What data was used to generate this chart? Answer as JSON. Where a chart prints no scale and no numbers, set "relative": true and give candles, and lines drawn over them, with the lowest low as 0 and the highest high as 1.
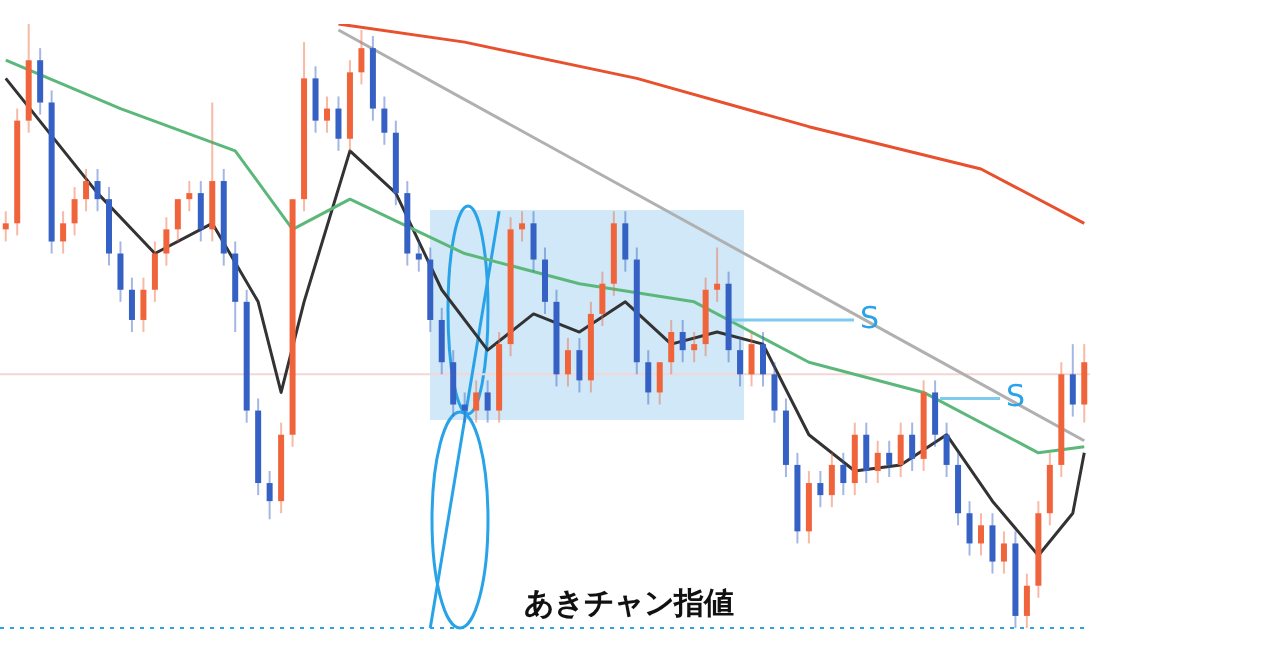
{
  "chart_data": {
    "type": "candlestick",
    "relative": true,
    "legend": false,
    "grid": false,
    "marker": "none",
    "categories": [
      null,
      null,
      null,
      null,
      null,
      null,
      null,
      null,
      null,
      null,
      null,
      null,
      null,
      null,
      null,
      null,
      null,
      null,
      null,
      null,
      null,
      null,
      null,
      null,
      null,
      null,
      null,
      null,
      null,
      null,
      null,
      null,
      null,
      null,
      null,
      null,
      null,
      null,
      null,
      null,
      null,
      null,
      null,
      null,
      null,
      null,
      null,
      null,
      null,
      null,
      null,
      null,
      null,
      null,
      null,
      null,
      null,
      null,
      null,
      null,
      null,
      null,
      null,
      null,
      null,
      null,
      null,
      null,
      null,
      null,
      null,
      null,
      null,
      null,
      null,
      null,
      null,
      null,
      null,
      null,
      null,
      null,
      null,
      null,
      null,
      null,
      null,
      null,
      null,
      null,
      null,
      null,
      null,
      null,
      null
    ],
    "ohlc": [
      [
        0.66,
        0.69,
        0.64,
        0.67
      ],
      [
        0.67,
        0.86,
        0.65,
        0.84
      ],
      [
        0.84,
        1.0,
        0.82,
        0.94
      ],
      [
        0.94,
        0.96,
        0.85,
        0.87
      ],
      [
        0.87,
        0.89,
        0.62,
        0.64
      ],
      [
        0.64,
        0.69,
        0.62,
        0.67
      ],
      [
        0.67,
        0.73,
        0.65,
        0.71
      ],
      [
        0.71,
        0.76,
        0.69,
        0.74
      ],
      [
        0.74,
        0.76,
        0.69,
        0.71
      ],
      [
        0.71,
        0.73,
        0.6,
        0.62
      ],
      [
        0.62,
        0.64,
        0.54,
        0.56
      ],
      [
        0.56,
        0.58,
        0.49,
        0.51
      ],
      [
        0.51,
        0.58,
        0.49,
        0.56
      ],
      [
        0.56,
        0.64,
        0.54,
        0.62
      ],
      [
        0.62,
        0.68,
        0.6,
        0.66
      ],
      [
        0.66,
        0.71,
        0.64,
        0.71
      ],
      [
        0.71,
        0.74,
        0.69,
        0.72
      ],
      [
        0.72,
        0.74,
        0.64,
        0.66
      ],
      [
        0.66,
        0.87,
        0.64,
        0.74
      ],
      [
        0.74,
        0.76,
        0.6,
        0.62
      ],
      [
        0.62,
        0.64,
        0.49,
        0.54
      ],
      [
        0.54,
        0.56,
        0.34,
        0.36
      ],
      [
        0.36,
        0.38,
        0.22,
        0.24
      ],
      [
        0.24,
        0.26,
        0.18,
        0.21
      ],
      [
        0.21,
        0.34,
        0.19,
        0.32
      ],
      [
        0.32,
        0.71,
        0.3,
        0.71
      ],
      [
        0.71,
        0.97,
        0.69,
        0.91
      ],
      [
        0.91,
        0.93,
        0.82,
        0.84
      ],
      [
        0.84,
        0.88,
        0.82,
        0.86
      ],
      [
        0.86,
        0.88,
        0.79,
        0.81
      ],
      [
        0.81,
        0.94,
        0.79,
        0.92
      ],
      [
        0.92,
        0.99,
        0.9,
        0.96
      ],
      [
        0.96,
        0.98,
        0.84,
        0.86
      ],
      [
        0.86,
        0.88,
        0.8,
        0.82
      ],
      [
        0.82,
        0.84,
        0.7,
        0.72
      ],
      [
        0.72,
        0.74,
        0.6,
        0.62
      ],
      [
        0.62,
        0.64,
        0.59,
        0.61
      ],
      [
        0.61,
        0.63,
        0.49,
        0.51
      ],
      [
        0.51,
        0.53,
        0.42,
        0.44
      ],
      [
        0.44,
        0.46,
        0.35,
        0.37
      ],
      [
        0.37,
        0.39,
        0.34,
        0.36
      ],
      [
        0.36,
        0.41,
        0.34,
        0.39
      ],
      [
        0.39,
        0.41,
        0.34,
        0.36
      ],
      [
        0.36,
        0.49,
        0.34,
        0.47
      ],
      [
        0.47,
        0.68,
        0.45,
        0.66
      ],
      [
        0.66,
        0.69,
        0.64,
        0.67
      ],
      [
        0.67,
        0.69,
        0.59,
        0.61
      ],
      [
        0.61,
        0.63,
        0.52,
        0.54
      ],
      [
        0.54,
        0.56,
        0.4,
        0.42
      ],
      [
        0.42,
        0.48,
        0.4,
        0.46
      ],
      [
        0.46,
        0.48,
        0.39,
        0.41
      ],
      [
        0.41,
        0.54,
        0.39,
        0.52
      ],
      [
        0.52,
        0.59,
        0.5,
        0.57
      ],
      [
        0.57,
        0.69,
        0.55,
        0.67
      ],
      [
        0.67,
        0.69,
        0.59,
        0.61
      ],
      [
        0.61,
        0.63,
        0.42,
        0.44
      ],
      [
        0.44,
        0.46,
        0.37,
        0.39
      ],
      [
        0.39,
        0.44,
        0.37,
        0.44
      ],
      [
        0.44,
        0.51,
        0.42,
        0.49
      ],
      [
        0.49,
        0.51,
        0.44,
        0.46
      ],
      [
        0.46,
        0.49,
        0.44,
        0.47
      ],
      [
        0.47,
        0.58,
        0.45,
        0.56
      ],
      [
        0.56,
        0.63,
        0.54,
        0.57
      ],
      [
        0.57,
        0.59,
        0.44,
        0.46
      ],
      [
        0.46,
        0.48,
        0.4,
        0.42
      ],
      [
        0.42,
        0.49,
        0.4,
        0.47
      ],
      [
        0.47,
        0.49,
        0.4,
        0.42
      ],
      [
        0.42,
        0.44,
        0.34,
        0.36
      ],
      [
        0.36,
        0.38,
        0.25,
        0.27
      ],
      [
        0.27,
        0.29,
        0.14,
        0.16
      ],
      [
        0.16,
        0.26,
        0.14,
        0.24
      ],
      [
        0.24,
        0.26,
        0.2,
        0.22
      ],
      [
        0.22,
        0.29,
        0.2,
        0.27
      ],
      [
        0.27,
        0.29,
        0.22,
        0.24
      ],
      [
        0.24,
        0.34,
        0.22,
        0.32
      ],
      [
        0.32,
        0.34,
        0.24,
        0.26
      ],
      [
        0.26,
        0.31,
        0.24,
        0.29
      ],
      [
        0.29,
        0.31,
        0.25,
        0.27
      ],
      [
        0.27,
        0.34,
        0.25,
        0.32
      ],
      [
        0.32,
        0.34,
        0.26,
        0.28
      ],
      [
        0.28,
        0.41,
        0.26,
        0.39
      ],
      [
        0.39,
        0.41,
        0.3,
        0.32
      ],
      [
        0.32,
        0.34,
        0.25,
        0.27
      ],
      [
        0.27,
        0.29,
        0.17,
        0.19
      ],
      [
        0.19,
        0.21,
        0.12,
        0.14
      ],
      [
        0.14,
        0.19,
        0.12,
        0.17
      ],
      [
        0.17,
        0.19,
        0.09,
        0.11
      ],
      [
        0.11,
        0.16,
        0.09,
        0.14
      ],
      [
        0.14,
        0.16,
        0.0,
        0.02
      ],
      [
        0.02,
        0.09,
        0.0,
        0.07
      ],
      [
        0.07,
        0.21,
        0.05,
        0.19
      ],
      [
        0.19,
        0.29,
        0.17,
        0.27
      ],
      [
        0.27,
        0.44,
        0.25,
        0.42
      ],
      [
        0.42,
        0.47,
        0.35,
        0.37
      ],
      [
        0.37,
        0.47,
        0.34,
        0.44
      ]
    ],
    "colors": [
      "#f0643c",
      "#f0643c",
      "#f0643c",
      "#3560c4",
      "#3560c4",
      "#f0643c",
      "#f0643c",
      "#f0643c",
      "#3560c4",
      "#3560c4",
      "#3560c4",
      "#3560c4",
      "#f0643c",
      "#f0643c",
      "#f0643c",
      "#f0643c",
      "#f0643c",
      "#3560c4",
      "#f0643c",
      "#3560c4",
      "#3560c4",
      "#3560c4",
      "#3560c4",
      "#3560c4",
      "#f0643c",
      "#f0643c",
      "#f0643c",
      "#3560c4",
      "#f0643c",
      "#3560c4",
      "#f0643c",
      "#f0643c",
      "#3560c4",
      "#3560c4",
      "#3560c4",
      "#3560c4",
      "#3560c4",
      "#3560c4",
      "#3560c4",
      "#3560c4",
      "#3560c4",
      "#f0643c",
      "#3560c4",
      "#f0643c",
      "#f0643c",
      "#f0643c",
      "#3560c4",
      "#3560c4",
      "#3560c4",
      "#f0643c",
      "#3560c4",
      "#f0643c",
      "#f0643c",
      "#f0643c",
      "#3560c4",
      "#3560c4",
      "#3560c4",
      "#f0643c",
      "#f0643c",
      "#3560c4",
      "#f0643c",
      "#f0643c",
      "#f0643c",
      "#3560c4",
      "#3560c4",
      "#f0643c",
      "#3560c4",
      "#3560c4",
      "#3560c4",
      "#3560c4",
      "#f0643c",
      "#3560c4",
      "#f0643c",
      "#3560c4",
      "#f0643c",
      "#3560c4",
      "#f0643c",
      "#3560c4",
      "#f0643c",
      "#3560c4",
      "#f0643c",
      "#3560c4",
      "#3560c4",
      "#3560c4",
      "#3560c4",
      "#f0643c",
      "#3560c4",
      "#f0643c",
      "#3560c4",
      "#f0643c",
      "#f0643c",
      "#f0643c",
      "#f0643c",
      "#3560c4",
      "#f0643c"
    ],
    "series": [
      {
        "type": "line",
        "color": "#e8502e",
        "values": [
          null,
          null,
          null,
          null,
          null,
          null,
          null,
          null,
          null,
          null,
          null,
          null,
          null,
          null,
          null,
          null,
          null,
          null,
          null,
          null,
          null,
          null,
          null,
          null,
          null,
          null,
          null,
          null,
          null,
          1.0,
          null,
          null,
          null,
          null,
          null,
          null,
          null,
          null,
          null,
          null,
          0.97,
          null,
          null,
          null,
          null,
          null,
          null,
          null,
          null,
          null,
          null,
          null,
          null,
          null,
          null,
          0.91,
          null,
          null,
          null,
          null,
          null,
          null,
          null,
          null,
          null,
          null,
          null,
          null,
          null,
          null,
          0.83,
          null,
          null,
          null,
          null,
          null,
          null,
          null,
          null,
          null,
          null,
          null,
          null,
          null,
          null,
          0.76,
          null,
          null,
          null,
          null,
          null,
          null,
          null,
          null,
          0.67
        ]
      },
      {
        "type": "line",
        "color": "#5cb87a",
        "values": [
          0.94,
          null,
          null,
          null,
          null,
          null,
          null,
          null,
          null,
          null,
          0.86,
          null,
          null,
          null,
          null,
          null,
          null,
          null,
          null,
          null,
          0.79,
          null,
          null,
          null,
          null,
          0.66,
          null,
          null,
          null,
          null,
          0.71,
          null,
          null,
          null,
          null,
          null,
          null,
          null,
          null,
          null,
          0.62,
          null,
          null,
          null,
          null,
          null,
          null,
          null,
          null,
          null,
          0.57,
          null,
          null,
          null,
          null,
          null,
          null,
          null,
          null,
          null,
          0.54,
          null,
          null,
          null,
          null,
          null,
          null,
          null,
          null,
          null,
          0.44,
          null,
          null,
          null,
          null,
          null,
          null,
          null,
          null,
          null,
          0.39,
          null,
          null,
          null,
          null,
          null,
          null,
          null,
          null,
          null,
          0.29,
          null,
          null,
          null,
          0.3
        ]
      },
      {
        "type": "line",
        "color": "#333333",
        "values": [
          0.91,
          null,
          null,
          null,
          null,
          null,
          null,
          null,
          0.72,
          null,
          null,
          null,
          null,
          0.62,
          null,
          null,
          null,
          null,
          0.67,
          null,
          null,
          null,
          0.54,
          null,
          0.39,
          null,
          0.54,
          null,
          null,
          null,
          0.79,
          null,
          null,
          null,
          0.72,
          null,
          null,
          null,
          0.56,
          null,
          null,
          null,
          0.46,
          null,
          null,
          null,
          0.52,
          null,
          null,
          null,
          0.49,
          null,
          null,
          null,
          0.54,
          null,
          null,
          null,
          0.47,
          null,
          null,
          null,
          0.49,
          null,
          null,
          null,
          0.47,
          null,
          null,
          null,
          0.32,
          null,
          null,
          null,
          0.26,
          null,
          null,
          null,
          0.27,
          null,
          null,
          null,
          0.32,
          null,
          null,
          null,
          0.21,
          null,
          null,
          null,
          0.12,
          null,
          null,
          0.19,
          0.29
        ]
      },
      {
        "type": "line",
        "color": "#29a3e8",
        "values": [
          null,
          null,
          null,
          null,
          null,
          null,
          null,
          null,
          null,
          null,
          null,
          null,
          null,
          null,
          null,
          null,
          null,
          null,
          null,
          null,
          null,
          null,
          null,
          null,
          null,
          null,
          null,
          null,
          null,
          null,
          null,
          null,
          null,
          null,
          null,
          null,
          null,
          0.0,
          null,
          null,
          null,
          null,
          null,
          0.69,
          null,
          null,
          null,
          null,
          null,
          null,
          null,
          null,
          null,
          null,
          null,
          null,
          null,
          null,
          null,
          null,
          null,
          null,
          null,
          null,
          null,
          null,
          null,
          null,
          null,
          null,
          null,
          null,
          null,
          null,
          null,
          null,
          null,
          null,
          null,
          null,
          null,
          null,
          null,
          null,
          null,
          null,
          null,
          null,
          null,
          null,
          null,
          null,
          null,
          null,
          null
        ]
      },
      {
        "type": "line",
        "color": "#b0b0b0",
        "values": [
          null,
          null,
          null,
          null,
          null,
          null,
          null,
          null,
          null,
          null,
          null,
          null,
          null,
          null,
          null,
          null,
          null,
          null,
          null,
          null,
          null,
          null,
          null,
          null,
          null,
          null,
          null,
          null,
          null,
          0.99,
          null,
          null,
          null,
          null,
          null,
          null,
          null,
          null,
          null,
          null,
          null,
          null,
          null,
          null,
          null,
          null,
          null,
          null,
          null,
          null,
          null,
          null,
          null,
          null,
          null,
          null,
          null,
          null,
          null,
          null,
          null,
          null,
          null,
          null,
          null,
          null,
          null,
          null,
          null,
          null,
          null,
          null,
          null,
          null,
          null,
          null,
          null,
          null,
          null,
          null,
          null,
          null,
          null,
          null,
          null,
          null,
          null,
          null,
          null,
          null,
          null,
          null,
          null,
          null,
          0.31
        ]
      }
    ],
    "ref_lines": [
      {
        "axis": "y",
        "value": 0,
        "label": "あきチャン指値",
        "color": "#29a3e8",
        "line_style": "dotted"
      },
      {
        "axis": "y",
        "value": 0.42,
        "color": "#f3d6d6"
      }
    ],
    "annotations": [
      {
        "text": "S",
        "y": 0.51
      },
      {
        "text": "S",
        "y": 0.38
      }
    ]
  }
}
